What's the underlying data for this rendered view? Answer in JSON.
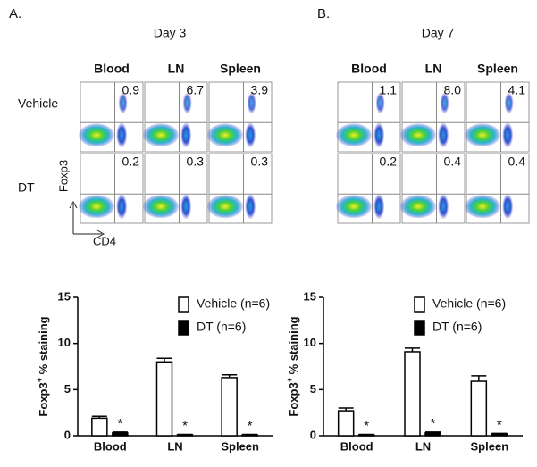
{
  "panels": [
    {
      "label": "A.",
      "title": "Day 3",
      "columns": [
        "Blood",
        "LN",
        "Spleen"
      ],
      "rows": [
        "Vehicle",
        "DT"
      ],
      "values": [
        [
          "0.9",
          "6.7",
          "3.9"
        ],
        [
          "0.2",
          "0.3",
          "0.3"
        ]
      ],
      "ylabel": "Foxp3",
      "xlabel": "CD4"
    },
    {
      "label": "B.",
      "title": "Day 7",
      "columns": [
        "Blood",
        "LN",
        "Spleen"
      ],
      "values": [
        [
          "1.1",
          "8.0",
          "4.1"
        ],
        [
          "0.2",
          "0.4",
          "0.4"
        ]
      ]
    }
  ],
  "chart_data": [
    {
      "type": "bar",
      "ylabel": [
        "Foxp3",
        "+",
        " % staining"
      ],
      "categories": [
        "Blood",
        "LN",
        "Spleen"
      ],
      "series": [
        {
          "name": "Vehicle (n=6)",
          "color": "#ffffff",
          "values": [
            1.9,
            8.0,
            6.3
          ],
          "errors": [
            0.2,
            0.4,
            0.3
          ]
        },
        {
          "name": "DT  (n=6)",
          "color": "#000000",
          "values": [
            0.3,
            0.1,
            0.1
          ],
          "errors": [
            0.1,
            0.05,
            0.05
          ],
          "annotations": [
            "*",
            "*",
            "*"
          ]
        }
      ],
      "ylim": [
        0,
        15
      ],
      "yticks": [
        0,
        5,
        10,
        15
      ]
    },
    {
      "type": "bar",
      "ylabel": [
        "Foxp3",
        "+",
        " % staining"
      ],
      "categories": [
        "Blood",
        "LN",
        "Spleen"
      ],
      "series": [
        {
          "name": "Vehicle (n=6)",
          "color": "#ffffff",
          "values": [
            2.7,
            9.1,
            5.9
          ],
          "errors": [
            0.3,
            0.4,
            0.6
          ]
        },
        {
          "name": "DT  (n=6)",
          "color": "#000000",
          "values": [
            0.1,
            0.3,
            0.2
          ],
          "errors": [
            0.05,
            0.1,
            0.05
          ],
          "annotations": [
            "*",
            "*",
            "*"
          ]
        }
      ],
      "ylim": [
        0,
        15
      ],
      "yticks": [
        0,
        5,
        10,
        15
      ]
    }
  ]
}
